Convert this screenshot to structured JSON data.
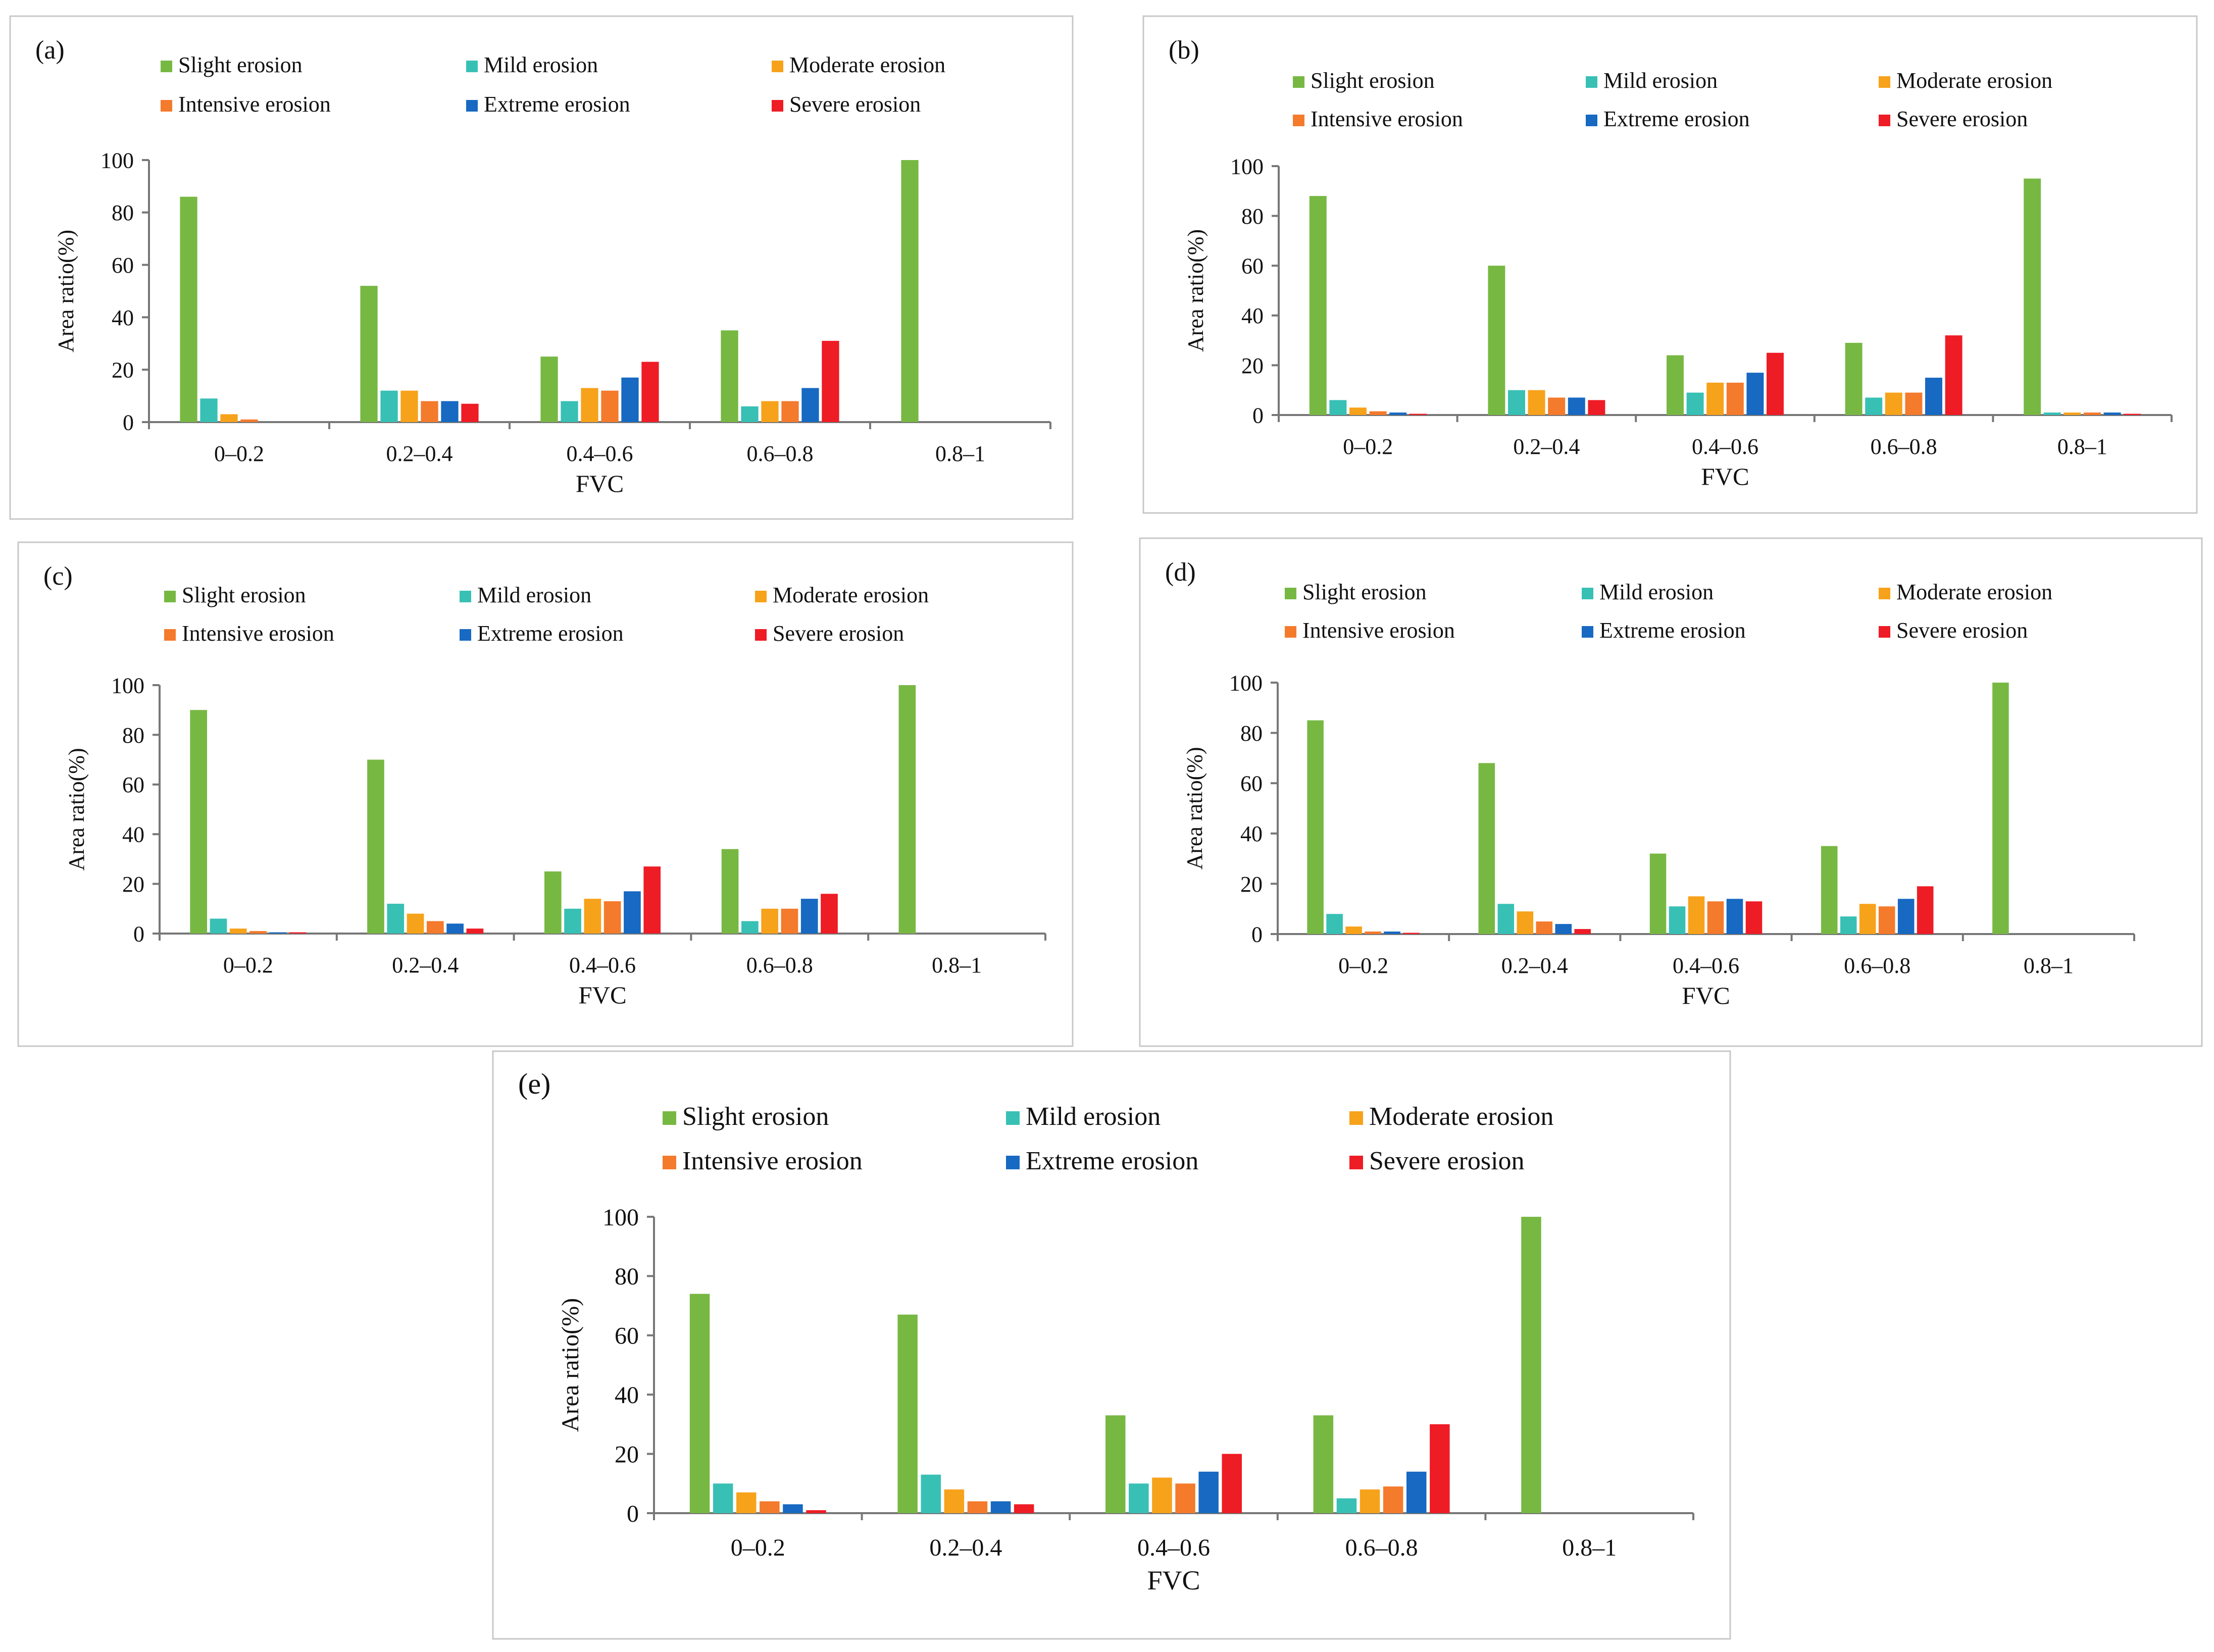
{
  "figure": {
    "series_names": [
      "Slight erosion",
      "Mild erosion",
      "Moderate erosion",
      "Intensive erosion",
      "Extreme erosion",
      "Severe erosion"
    ],
    "series_colors": [
      "#77b843",
      "#38c0b5",
      "#f7a21b",
      "#f47a2c",
      "#1769c2",
      "#ee1c25"
    ]
  },
  "chart_data": [
    {
      "type": "bar",
      "panel_label": "(a)",
      "title": "",
      "xlabel": "FVC",
      "ylabel": "Area ratio(%)",
      "ylim": [
        0,
        100
      ],
      "yticks": [
        "0",
        "20",
        "40",
        "60",
        "80",
        "100"
      ],
      "categories": [
        "0–0.2",
        "0.2–0.4",
        "0.4–0.6",
        "0.6–0.8",
        "0.8–1"
      ],
      "legend": "top",
      "series": [
        {
          "name": "Slight erosion",
          "values": [
            86,
            52,
            25,
            35,
            100
          ]
        },
        {
          "name": "Mild erosion",
          "values": [
            9,
            12,
            8,
            6,
            0
          ]
        },
        {
          "name": "Moderate erosion",
          "values": [
            3,
            12,
            13,
            8,
            0
          ]
        },
        {
          "name": "Intensive erosion",
          "values": [
            1,
            8,
            12,
            8,
            0
          ]
        },
        {
          "name": "Extreme erosion",
          "values": [
            0,
            8,
            17,
            13,
            0
          ]
        },
        {
          "name": "Severe erosion",
          "values": [
            0,
            7,
            23,
            31,
            0
          ]
        }
      ]
    },
    {
      "type": "bar",
      "panel_label": "(b)",
      "title": "",
      "xlabel": "FVC",
      "ylabel": "Area ratio(%)",
      "ylim": [
        0,
        100
      ],
      "yticks": [
        "0",
        "20",
        "40",
        "60",
        "80",
        "100"
      ],
      "categories": [
        "0–0.2",
        "0.2–0.4",
        "0.4–0.6",
        "0.6–0.8",
        "0.8–1"
      ],
      "legend": "top",
      "series": [
        {
          "name": "Slight erosion",
          "values": [
            88,
            60,
            24,
            29,
            95
          ]
        },
        {
          "name": "Mild erosion",
          "values": [
            6,
            10,
            9,
            7,
            1
          ]
        },
        {
          "name": "Moderate erosion",
          "values": [
            3,
            10,
            13,
            9,
            1
          ]
        },
        {
          "name": "Intensive erosion",
          "values": [
            1.5,
            7,
            13,
            9,
            1
          ]
        },
        {
          "name": "Extreme erosion",
          "values": [
            1,
            7,
            17,
            15,
            1
          ]
        },
        {
          "name": "Severe erosion",
          "values": [
            0.5,
            6,
            25,
            32,
            0.5
          ]
        }
      ]
    },
    {
      "type": "bar",
      "panel_label": "(c)",
      "title": "",
      "xlabel": "FVC",
      "ylabel": "Area ratio(%)",
      "ylim": [
        0,
        100
      ],
      "yticks": [
        "0",
        "20",
        "40",
        "60",
        "80",
        "100"
      ],
      "categories": [
        "0–0.2",
        "0.2–0.4",
        "0.4–0.6",
        "0.6–0.8",
        "0.8–1"
      ],
      "legend": "top",
      "series": [
        {
          "name": "Slight erosion",
          "values": [
            90,
            70,
            25,
            34,
            100
          ]
        },
        {
          "name": "Mild erosion",
          "values": [
            6,
            12,
            10,
            5,
            0
          ]
        },
        {
          "name": "Moderate erosion",
          "values": [
            2,
            8,
            14,
            10,
            0
          ]
        },
        {
          "name": "Intensive erosion",
          "values": [
            1,
            5,
            13,
            10,
            0
          ]
        },
        {
          "name": "Extreme erosion",
          "values": [
            0.5,
            4,
            17,
            14,
            0
          ]
        },
        {
          "name": "Severe erosion",
          "values": [
            0.5,
            2,
            27,
            16,
            0
          ]
        }
      ]
    },
    {
      "type": "bar",
      "panel_label": "(d)",
      "title": "",
      "xlabel": "FVC",
      "ylabel": "Area ratio(%)",
      "ylim": [
        0,
        100
      ],
      "yticks": [
        "0",
        "20",
        "40",
        "60",
        "80",
        "100"
      ],
      "categories": [
        "0–0.2",
        "0.2–0.4",
        "0.4–0.6",
        "0.6–0.8",
        "0.8–1"
      ],
      "legend": "top",
      "series": [
        {
          "name": "Slight erosion",
          "values": [
            85,
            68,
            32,
            35,
            100
          ]
        },
        {
          "name": "Mild erosion",
          "values": [
            8,
            12,
            11,
            7,
            0
          ]
        },
        {
          "name": "Moderate erosion",
          "values": [
            3,
            9,
            15,
            12,
            0
          ]
        },
        {
          "name": "Intensive erosion",
          "values": [
            1,
            5,
            13,
            11,
            0
          ]
        },
        {
          "name": "Extreme erosion",
          "values": [
            1,
            4,
            14,
            14,
            0
          ]
        },
        {
          "name": "Severe erosion",
          "values": [
            0.5,
            2,
            13,
            19,
            0
          ]
        }
      ]
    },
    {
      "type": "bar",
      "panel_label": "(e)",
      "title": "",
      "xlabel": "FVC",
      "ylabel": "Area ratio(%)",
      "ylim": [
        0,
        100
      ],
      "yticks": [
        "0",
        "20",
        "40",
        "60",
        "80",
        "100"
      ],
      "categories": [
        "0–0.2",
        "0.2–0.4",
        "0.4–0.6",
        "0.6–0.8",
        "0.8–1"
      ],
      "legend": "top",
      "series": [
        {
          "name": "Slight erosion",
          "values": [
            74,
            67,
            33,
            33,
            100
          ]
        },
        {
          "name": "Mild erosion",
          "values": [
            10,
            13,
            10,
            5,
            0
          ]
        },
        {
          "name": "Moderate erosion",
          "values": [
            7,
            8,
            12,
            8,
            0
          ]
        },
        {
          "name": "Intensive erosion",
          "values": [
            4,
            4,
            10,
            9,
            0
          ]
        },
        {
          "name": "Extreme erosion",
          "values": [
            3,
            4,
            14,
            14,
            0
          ]
        },
        {
          "name": "Severe erosion",
          "values": [
            1,
            3,
            20,
            30,
            0
          ]
        }
      ]
    }
  ]
}
